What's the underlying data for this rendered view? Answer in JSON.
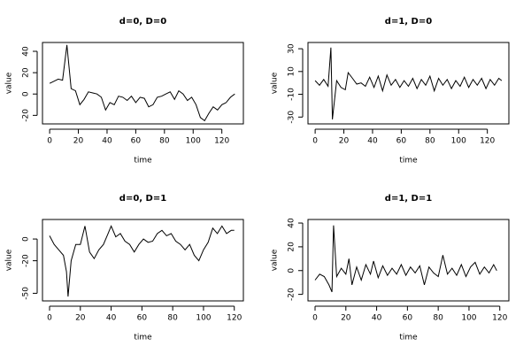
{
  "chart_data": [
    {
      "type": "line",
      "title": "d=0, D=0",
      "xlabel": "time",
      "ylabel": "value",
      "color": "#000000",
      "x": [
        0,
        3,
        6,
        9,
        12,
        15,
        18,
        21,
        24,
        27,
        30,
        33,
        36,
        39,
        42,
        45,
        48,
        51,
        54,
        57,
        60,
        63,
        66,
        69,
        72,
        75,
        78,
        81,
        84,
        87,
        90,
        93,
        96,
        99,
        102,
        105,
        108,
        111,
        114,
        117,
        120,
        123,
        126,
        129
      ],
      "values": [
        10,
        12,
        14,
        13,
        46,
        5,
        3,
        -10,
        -5,
        2,
        1,
        0,
        -3,
        -15,
        -8,
        -10,
        -2,
        -3,
        -6,
        -2,
        -8,
        -3,
        -4,
        -12,
        -10,
        -3,
        -2,
        0,
        2,
        -5,
        3,
        0,
        -6,
        -3,
        -10,
        -22,
        -25,
        -18,
        -12,
        -15,
        -10,
        -8,
        -3,
        0
      ],
      "xlim": [
        -5,
        135
      ],
      "ylim": [
        -28,
        48.3
      ],
      "xticks": [
        0,
        20,
        40,
        60,
        80,
        100,
        120
      ],
      "yticks": [
        -20,
        0,
        20,
        40
      ]
    },
    {
      "type": "line",
      "title": "d=1, D=0",
      "xlabel": "time",
      "ylabel": "value",
      "color": "#000000",
      "x": [
        0,
        3,
        6,
        9,
        11,
        12,
        15,
        18,
        21,
        23,
        26,
        29,
        32,
        35,
        38,
        41,
        44,
        47,
        50,
        53,
        56,
        59,
        62,
        65,
        68,
        71,
        74,
        77,
        80,
        83,
        86,
        89,
        92,
        95,
        98,
        101,
        104,
        107,
        110,
        113,
        116,
        119,
        122,
        125,
        128,
        130
      ],
      "values": [
        2,
        -2,
        3,
        -3,
        31,
        -32,
        2,
        -4,
        -6,
        9,
        4,
        -1,
        0,
        -3,
        5,
        -4,
        6,
        -7,
        7,
        -2,
        3,
        -4,
        2,
        -3,
        4,
        -5,
        3,
        -2,
        6,
        -7,
        4,
        -2,
        3,
        -5,
        2,
        -3,
        5,
        -4,
        3,
        -2,
        4,
        -5,
        3,
        -2,
        4,
        2
      ],
      "xlim": [
        -5,
        135
      ],
      "ylim": [
        -36,
        35.5
      ],
      "xticks": [
        0,
        20,
        40,
        60,
        80,
        100,
        120
      ],
      "yticks": [
        -30,
        -10,
        10,
        30
      ]
    },
    {
      "type": "line",
      "title": "d=0, D=1",
      "xlabel": "time",
      "ylabel": "value",
      "color": "#000000",
      "x": [
        0,
        3,
        6,
        9,
        11,
        12,
        14,
        17,
        20,
        23,
        26,
        29,
        32,
        35,
        38,
        40,
        43,
        46,
        49,
        52,
        55,
        58,
        61,
        64,
        67,
        70,
        73,
        76,
        79,
        82,
        85,
        88,
        91,
        94,
        97,
        100,
        103,
        106,
        109,
        112,
        115,
        118,
        120
      ],
      "values": [
        3,
        -5,
        -10,
        -15,
        -30,
        -53,
        -20,
        -5,
        -5,
        12,
        -12,
        -18,
        -10,
        -5,
        5,
        12,
        2,
        5,
        -2,
        -5,
        -12,
        -5,
        0,
        -3,
        -2,
        5,
        8,
        3,
        5,
        -2,
        -5,
        -10,
        -5,
        -15,
        -20,
        -10,
        -3,
        10,
        5,
        12,
        5,
        8,
        8
      ],
      "xlim": [
        -4.6,
        125.9
      ],
      "ylim": [
        -57,
        18
      ],
      "xticks": [
        0,
        20,
        40,
        60,
        80,
        100,
        120
      ],
      "yticks": [
        -50,
        -20,
        0
      ]
    },
    {
      "type": "line",
      "title": "d=1, D=1",
      "xlabel": "time",
      "ylabel": "value",
      "color": "#000000",
      "x": [
        0,
        3,
        6,
        9,
        11,
        12,
        14,
        17,
        20,
        22,
        24,
        27,
        30,
        33,
        36,
        38,
        41,
        44,
        47,
        50,
        53,
        56,
        59,
        62,
        65,
        68,
        71,
        74,
        77,
        80,
        83,
        86,
        89,
        92,
        95,
        98,
        101,
        104,
        107,
        110,
        113,
        116,
        118
      ],
      "values": [
        -8,
        -3,
        -5,
        -12,
        -18,
        38,
        -5,
        2,
        -3,
        10,
        -12,
        3,
        -8,
        5,
        -3,
        8,
        -6,
        4,
        -4,
        2,
        -3,
        5,
        -4,
        3,
        -2,
        4,
        -12,
        3,
        -2,
        -5,
        13,
        -3,
        2,
        -4,
        5,
        -5,
        3,
        7,
        -3,
        3,
        -2,
        5,
        0
      ],
      "xlim": [
        -4.6,
        125.9
      ],
      "ylim": [
        -25.5,
        43
      ],
      "xticks": [
        0,
        20,
        40,
        60,
        80,
        100,
        120
      ],
      "yticks": [
        -20,
        0,
        20,
        40
      ]
    }
  ]
}
